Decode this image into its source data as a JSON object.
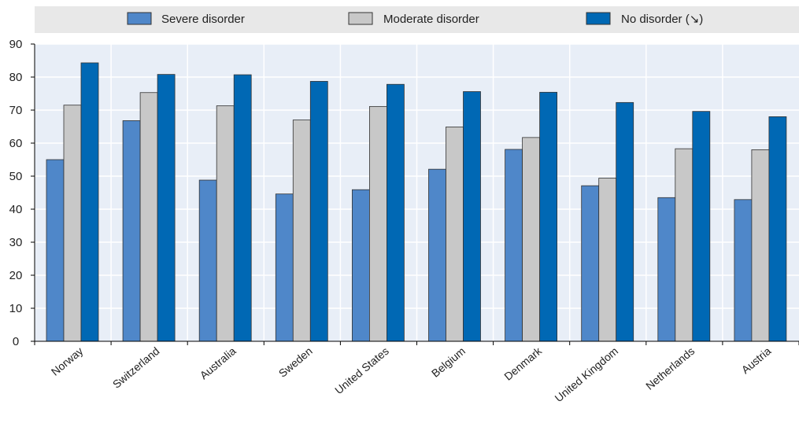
{
  "chart_data": {
    "type": "bar",
    "categories": [
      "Norway",
      "Switzerland",
      "Australia",
      "Sweden",
      "United States",
      "Belgium",
      "Denmark",
      "United Kingdom",
      "Netherlands",
      "Austria"
    ],
    "series": [
      {
        "name": "Severe disorder",
        "color": "#4f87c9",
        "values": [
          55,
          66.8,
          48.8,
          44.6,
          45.9,
          52.1,
          58.1,
          47.1,
          43.5,
          42.9
        ]
      },
      {
        "name": "Moderate disorder",
        "color": "#c8c8c8",
        "values": [
          71.5,
          75.3,
          71.3,
          67,
          71.1,
          64.9,
          61.7,
          49.4,
          58.3,
          58
        ]
      },
      {
        "name": "No disorder (↘)",
        "color": "#0068b4",
        "values": [
          84.3,
          80.8,
          80.7,
          78.7,
          77.8,
          75.6,
          75.4,
          72.3,
          69.6,
          68
        ]
      }
    ],
    "ylim": [
      0,
      90
    ],
    "yticks": [
      "0",
      "10",
      "20",
      "30",
      "40",
      "50",
      "60",
      "70",
      "80",
      "90"
    ],
    "grid": true,
    "legend": "top"
  }
}
